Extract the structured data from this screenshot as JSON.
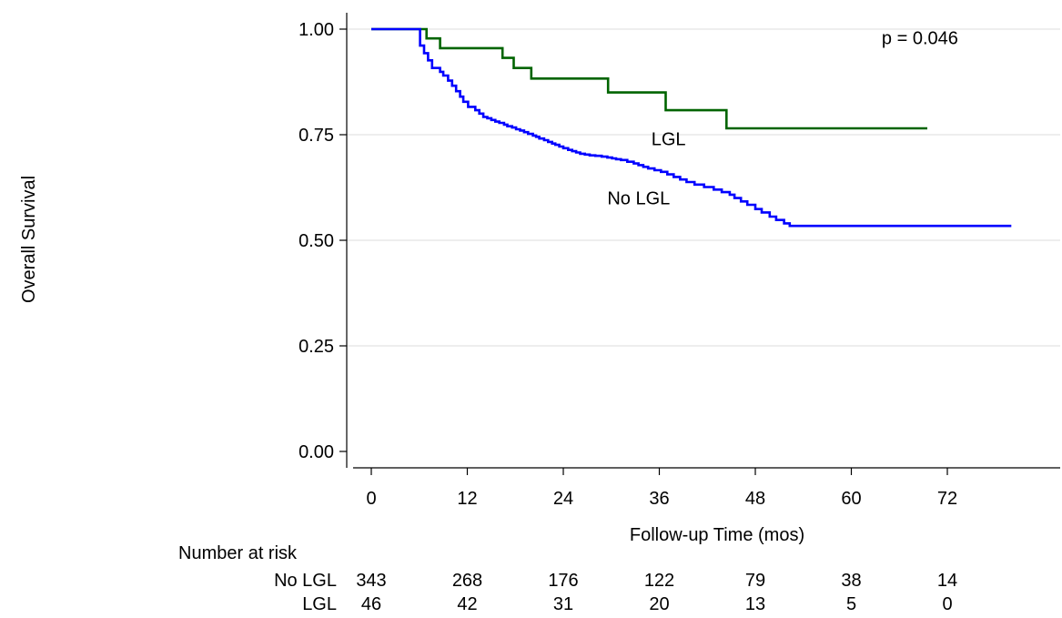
{
  "chart_data": {
    "type": "line",
    "subtype": "step",
    "xlabel": "Follow-up Time (mos)",
    "ylabel": "Overall Survival",
    "xlim": [
      0,
      80
    ],
    "ylim": [
      0,
      1
    ],
    "x_ticks": [
      0,
      12,
      24,
      36,
      48,
      60,
      72
    ],
    "x_tick_labels": [
      "0",
      "12",
      "24",
      "36",
      "48",
      "60",
      "72"
    ],
    "y_ticks": [
      0,
      0.25,
      0.5,
      0.75,
      1.0
    ],
    "y_tick_labels": [
      "0.00",
      "0.25",
      "0.50",
      "0.75",
      "1.00"
    ],
    "grid": "horizontal",
    "legend": "none",
    "series": [
      {
        "name": "LGL",
        "color": "#006400",
        "x": [
          0,
          3.6,
          5.2,
          6.9,
          8.6,
          12.8,
          16.4,
          17.8,
          20.0,
          24.4,
          29.6,
          33.0,
          36.8,
          40.2,
          44.4,
          48.0,
          52.0,
          69.5
        ],
        "y": [
          1.0,
          1.0,
          1.0,
          0.978,
          0.955,
          0.955,
          0.932,
          0.908,
          0.883,
          0.883,
          0.85,
          0.85,
          0.808,
          0.808,
          0.765,
          0.765,
          0.765,
          0.765
        ]
      },
      {
        "name": "No LGL",
        "color": "#0000FF",
        "x": [
          0,
          6.1,
          6.6,
          7.1,
          7.6,
          8.1,
          8.6,
          9.0,
          9.6,
          10.1,
          10.6,
          11.1,
          11.5,
          12.1,
          12.6,
          13.0,
          13.5,
          14.0,
          14.5,
          15.0,
          15.5,
          16.0,
          16.6,
          17.0,
          17.6,
          18.1,
          18.6,
          19.1,
          19.6,
          20.2,
          20.6,
          21.0,
          21.6,
          22.1,
          22.6,
          23.0,
          23.5,
          24.0,
          24.6,
          25.1,
          25.6,
          26.1,
          26.7,
          27.3,
          28.0,
          28.8,
          29.5,
          30.1,
          30.6,
          31.2,
          32.0,
          32.8,
          33.4,
          34.0,
          34.6,
          35.4,
          36.2,
          37.0,
          37.8,
          38.6,
          39.4,
          40.4,
          41.6,
          42.8,
          43.8,
          44.8,
          45.4,
          46.2,
          47.0,
          48.0,
          48.8,
          49.8,
          50.6,
          51.6,
          52.3,
          53.4,
          54.4,
          55.6,
          56.6,
          57.8,
          80.0
        ],
        "y": [
          1.0,
          0.961,
          0.943,
          0.926,
          0.908,
          0.908,
          0.899,
          0.89,
          0.878,
          0.866,
          0.853,
          0.84,
          0.828,
          0.816,
          0.816,
          0.808,
          0.8,
          0.792,
          0.789,
          0.785,
          0.781,
          0.778,
          0.774,
          0.77,
          0.767,
          0.763,
          0.76,
          0.756,
          0.752,
          0.748,
          0.745,
          0.741,
          0.737,
          0.733,
          0.729,
          0.726,
          0.722,
          0.718,
          0.714,
          0.711,
          0.708,
          0.705,
          0.703,
          0.701,
          0.7,
          0.698,
          0.696,
          0.694,
          0.692,
          0.69,
          0.686,
          0.682,
          0.678,
          0.674,
          0.67,
          0.666,
          0.662,
          0.656,
          0.65,
          0.644,
          0.638,
          0.632,
          0.626,
          0.62,
          0.614,
          0.608,
          0.6,
          0.592,
          0.584,
          0.574,
          0.566,
          0.556,
          0.548,
          0.54,
          0.534,
          0.534,
          0.534,
          0.534,
          0.534,
          0.534,
          0.534
        ]
      }
    ],
    "annotations": [
      {
        "text": "p = 0.046",
        "x": 63.8,
        "y": 0.98
      },
      {
        "text": "LGL",
        "x": 35.0,
        "y": 0.74
      },
      {
        "text": "No LGL",
        "x": 29.5,
        "y": 0.6
      }
    ],
    "risk_table": {
      "title": "Number at risk",
      "at_times": [
        0,
        12,
        24,
        36,
        48,
        60,
        72
      ],
      "rows": [
        {
          "label": "No LGL",
          "counts": [
            "343",
            "268",
            "176",
            "122",
            "79",
            "38",
            "14"
          ]
        },
        {
          "label": "LGL",
          "counts": [
            "46",
            "42",
            "31",
            "20",
            "13",
            "5",
            "0"
          ]
        }
      ]
    }
  }
}
